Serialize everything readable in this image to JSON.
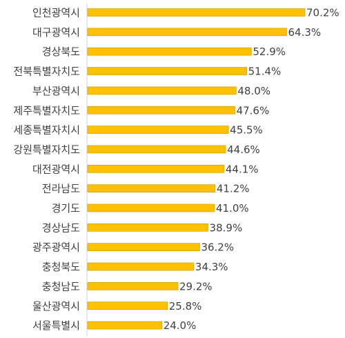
{
  "chart_data": {
    "type": "bar",
    "orientation": "horizontal",
    "categories": [
      "인천광역시",
      "대구광역시",
      "경상북도",
      "전북특별자치도",
      "부산광역시",
      "제주특별자치도",
      "세종특별자치시",
      "강원특별자치도",
      "대전광역시",
      "전라남도",
      "경기도",
      "경상남도",
      "광주광역시",
      "충청북도",
      "충청남도",
      "울산광역시",
      "서울특별시"
    ],
    "values": [
      70.2,
      64.3,
      52.9,
      51.4,
      48.0,
      47.6,
      45.5,
      44.6,
      44.1,
      41.2,
      41.0,
      38.9,
      36.2,
      34.3,
      29.2,
      25.8,
      24.0
    ],
    "value_labels": [
      "70.2%",
      "64.3%",
      "52.9%",
      "51.4%",
      "48.0%",
      "47.6%",
      "45.5%",
      "44.6%",
      "44.1%",
      "41.2%",
      "41.0%",
      "38.9%",
      "36.2%",
      "34.3%",
      "29.2%",
      "25.8%",
      "24.0%"
    ],
    "xlim": [
      0,
      70.2
    ],
    "grid": false,
    "bar_color": "#FFC000",
    "bar_edge_color": "#C89800"
  }
}
